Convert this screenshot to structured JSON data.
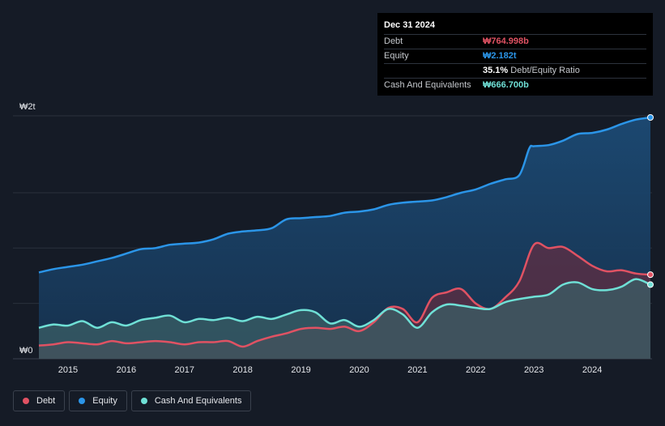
{
  "tooltip": {
    "date": "Dec 31 2024",
    "rows": [
      {
        "label": "Debt",
        "value": "₩764.998b",
        "color": "#e05263"
      },
      {
        "label": "Equity",
        "value": "₩2.182t",
        "color": "#2b95e8"
      },
      {
        "label": "",
        "value": "35.1%",
        "note": "Debt/Equity Ratio",
        "color": "#ffffff"
      },
      {
        "label": "Cash And Equivalents",
        "value": "₩666.700b",
        "color": "#6fe0d6"
      }
    ]
  },
  "legend": [
    {
      "label": "Debt",
      "color": "#e05263"
    },
    {
      "label": "Equity",
      "color": "#2b95e8"
    },
    {
      "label": "Cash And Equivalents",
      "color": "#6fe0d6"
    }
  ],
  "chart_data": {
    "type": "area",
    "y_unit": "trillion KRW",
    "ylim": [
      0,
      2.2
    ],
    "y_tick_labels": [
      {
        "value": 2.0,
        "label": "₩2t"
      },
      {
        "value": 0,
        "label": "₩0"
      }
    ],
    "x_ticks": [
      2015,
      2016,
      2017,
      2018,
      2019,
      2020,
      2021,
      2022,
      2023,
      2024
    ],
    "xlim": [
      2014.5,
      2025.0
    ],
    "grid": true,
    "series": [
      {
        "name": "Equity",
        "color": "#2b95e8",
        "x": [
          2014.5,
          2014.75,
          2015.0,
          2015.25,
          2015.5,
          2015.75,
          2016.0,
          2016.25,
          2016.5,
          2016.75,
          2017.0,
          2017.25,
          2017.5,
          2017.75,
          2018.0,
          2018.25,
          2018.5,
          2018.75,
          2019.0,
          2019.25,
          2019.5,
          2019.75,
          2020.0,
          2020.25,
          2020.5,
          2020.75,
          2021.0,
          2021.25,
          2021.5,
          2021.75,
          2022.0,
          2022.25,
          2022.5,
          2022.75,
          2022.92,
          2023.0,
          2023.25,
          2023.5,
          2023.75,
          2024.0,
          2024.25,
          2024.5,
          2024.75,
          2025.0
        ],
        "values": [
          0.78,
          0.81,
          0.83,
          0.85,
          0.88,
          0.91,
          0.95,
          0.99,
          1.0,
          1.03,
          1.04,
          1.05,
          1.08,
          1.13,
          1.15,
          1.16,
          1.18,
          1.26,
          1.27,
          1.28,
          1.29,
          1.32,
          1.33,
          1.35,
          1.39,
          1.41,
          1.42,
          1.43,
          1.46,
          1.5,
          1.53,
          1.58,
          1.62,
          1.66,
          1.9,
          1.92,
          1.93,
          1.97,
          2.03,
          2.04,
          2.07,
          2.12,
          2.16,
          2.18
        ]
      },
      {
        "name": "Debt",
        "color": "#e05263",
        "x": [
          2014.5,
          2014.75,
          2015.0,
          2015.25,
          2015.5,
          2015.75,
          2016.0,
          2016.25,
          2016.5,
          2016.75,
          2017.0,
          2017.25,
          2017.5,
          2017.75,
          2018.0,
          2018.25,
          2018.5,
          2018.75,
          2019.0,
          2019.25,
          2019.5,
          2019.75,
          2020.0,
          2020.25,
          2020.5,
          2020.75,
          2021.0,
          2021.25,
          2021.5,
          2021.75,
          2022.0,
          2022.25,
          2022.5,
          2022.75,
          2023.0,
          2023.25,
          2023.5,
          2023.75,
          2024.0,
          2024.25,
          2024.5,
          2024.75,
          2025.0
        ],
        "values": [
          0.12,
          0.13,
          0.15,
          0.14,
          0.13,
          0.16,
          0.14,
          0.15,
          0.16,
          0.15,
          0.13,
          0.15,
          0.15,
          0.16,
          0.11,
          0.16,
          0.2,
          0.23,
          0.27,
          0.28,
          0.27,
          0.29,
          0.25,
          0.33,
          0.46,
          0.45,
          0.33,
          0.55,
          0.6,
          0.63,
          0.5,
          0.45,
          0.55,
          0.7,
          1.03,
          1.0,
          1.01,
          0.93,
          0.84,
          0.79,
          0.8,
          0.77,
          0.76
        ]
      },
      {
        "name": "Cash And Equivalents",
        "color": "#6fe0d6",
        "x": [
          2014.5,
          2014.75,
          2015.0,
          2015.25,
          2015.5,
          2015.75,
          2016.0,
          2016.25,
          2016.5,
          2016.75,
          2017.0,
          2017.25,
          2017.5,
          2017.75,
          2018.0,
          2018.25,
          2018.5,
          2018.75,
          2019.0,
          2019.25,
          2019.5,
          2019.75,
          2020.0,
          2020.25,
          2020.5,
          2020.75,
          2021.0,
          2021.25,
          2021.5,
          2021.75,
          2022.0,
          2022.25,
          2022.5,
          2022.75,
          2023.0,
          2023.25,
          2023.5,
          2023.75,
          2024.0,
          2024.25,
          2024.5,
          2024.75,
          2025.0
        ],
        "values": [
          0.28,
          0.31,
          0.3,
          0.34,
          0.28,
          0.33,
          0.3,
          0.35,
          0.37,
          0.39,
          0.33,
          0.36,
          0.35,
          0.37,
          0.34,
          0.38,
          0.36,
          0.4,
          0.44,
          0.42,
          0.32,
          0.35,
          0.29,
          0.35,
          0.45,
          0.4,
          0.28,
          0.42,
          0.49,
          0.48,
          0.46,
          0.45,
          0.51,
          0.54,
          0.56,
          0.58,
          0.67,
          0.69,
          0.63,
          0.62,
          0.65,
          0.72,
          0.67
        ]
      }
    ]
  }
}
